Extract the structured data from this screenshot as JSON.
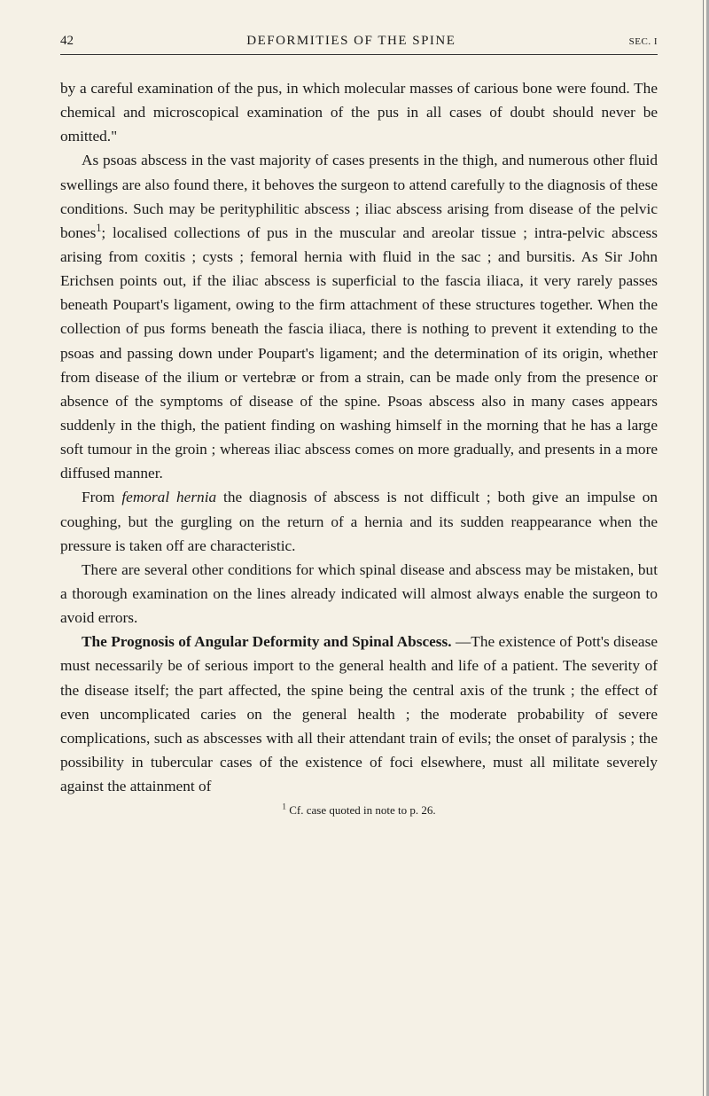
{
  "page": {
    "number": "42",
    "running_head": "DEFORMITIES OF THE SPINE",
    "section": "SEC. I",
    "paragraphs": [
      "by a careful examination of the pus, in which molecular masses of carious bone were found. The chemical and microscopical examination of the pus in all cases of doubt should never be omitted.\"",
      "As psoas abscess in the vast majority of cases presents in the thigh, and numerous other fluid swellings are also found there, it behoves the surgeon to attend carefully to the diagnosis of these conditions. Such may be perityphilitic abscess ; iliac abscess arising from disease of the pelvic bones",
      "; localised collections of pus in the muscular and areolar tissue ; intra-pelvic abscess arising from coxitis ; cysts ; femoral hernia with fluid in the sac ; and bursitis. As Sir John Erichsen points out, if the iliac abscess is superficial to the fascia iliaca, it very rarely passes beneath Poupart's ligament, owing to the firm attachment of these structures together. When the collection of pus forms beneath the fascia iliaca, there is nothing to prevent it extending to the psoas and passing down under Poupart's ligament; and the determination of its origin, whether from disease of the ilium or vertebræ or from a strain, can be made only from the presence or absence of the symptoms of disease of the spine. Psoas abscess also in many cases appears suddenly in the thigh, the patient finding on washing himself in the morning that he has a large soft tumour in the groin ; whereas iliac abscess comes on more gradually, and presents in a more diffused manner.",
      "From ",
      "femoral hernia",
      " the diagnosis of abscess is not difficult ; both give an impulse on coughing, but the gurgling on the return of a hernia and its sudden reappearance when the pressure is taken off are characteristic.",
      "There are several other conditions for which spinal disease and abscess may be mistaken, but a thorough examination on the lines already indicated will almost always enable the surgeon to avoid errors.",
      "The Prognosis of Angular Deformity and Spinal Abscess.",
      "—The existence of Pott's disease must necessarily be of serious import to the general health and life of a patient. The severity of the disease itself; the part affected, the spine being the central axis of the trunk ; the effect of even uncomplicated caries on the general health ; the moderate probability of severe complications, such as abscesses with all their attendant train of evils; the onset of paralysis ; the possibility in tubercular cases of the existence of foci elsewhere, must all militate severely against the attainment of"
    ],
    "footnote": {
      "marker": "1",
      "text": " Cf. case quoted in note to p. 26."
    }
  },
  "styling": {
    "background_color": "#f5f1e6",
    "text_color": "#1a1a1a",
    "body_font_size": 17.3,
    "body_line_height": 1.57,
    "header_font_size": 15,
    "footnote_font_size": 13
  }
}
